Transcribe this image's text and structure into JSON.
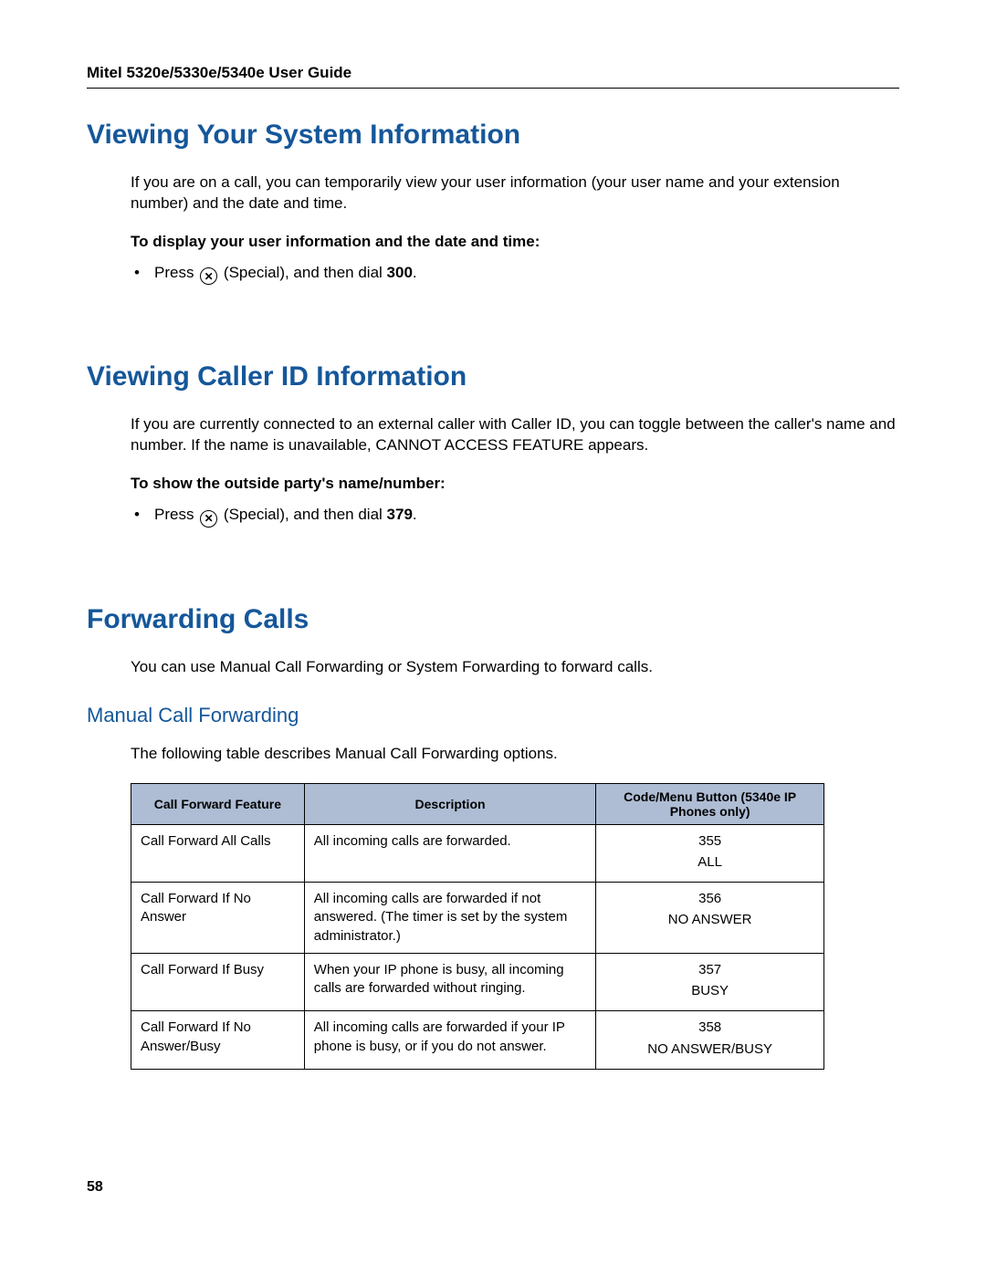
{
  "header": {
    "title": "Mitel 5320e/5330e/5340e User Guide"
  },
  "section1": {
    "heading": "Viewing Your System Information",
    "intro": "If you are on a call, you can temporarily view your user information (your user name and your extension number) and the date and time.",
    "subhead": "To display your user information and the date and time:",
    "bullet_prefix": "Press ",
    "bullet_mid": " (Special), and then dial ",
    "bullet_code": "300",
    "bullet_suffix": "."
  },
  "section2": {
    "heading": "Viewing Caller ID Information",
    "intro": "If you are currently connected to an external caller with Caller ID, you can toggle between the caller's name and number. If the name is unavailable, CANNOT ACCESS FEATURE appears.",
    "subhead": "To show the outside party's name/number:",
    "bullet_prefix": "Press ",
    "bullet_mid": " (Special), and then dial ",
    "bullet_code": "379",
    "bullet_suffix": "."
  },
  "section3": {
    "heading": "Forwarding Calls",
    "intro": "You can use Manual Call Forwarding or System Forwarding to forward calls.",
    "subheading": "Manual Call Forwarding",
    "subintro": "The following table describes Manual Call Forwarding options."
  },
  "table": {
    "columns": [
      "Call Forward Feature",
      "Description",
      "Code/Menu Button (5340e IP Phones only)"
    ],
    "col_widths": [
      "190px",
      "320px",
      "250px"
    ],
    "header_bg": "#aebdd4",
    "rows": [
      {
        "feature": "Call Forward All Calls",
        "desc": "All incoming calls are forwarded.",
        "code": "355",
        "button": "ALL"
      },
      {
        "feature": "Call Forward If No Answer",
        "desc": "All incoming calls are forwarded if not answered. (The timer is set by the system administrator.)",
        "code": "356",
        "button": "NO ANSWER"
      },
      {
        "feature": "Call Forward If Busy",
        "desc": "When your IP phone is busy, all incoming calls are forwarded without ringing.",
        "code": "357",
        "button": "BUSY"
      },
      {
        "feature": "Call Forward If No Answer/Busy",
        "desc": "All incoming calls are forwarded if your IP phone is busy, or if you do not answer.",
        "code": "358",
        "button": "NO ANSWER/BUSY"
      }
    ]
  },
  "footer": {
    "page": "58"
  },
  "icon_glyph": "✕"
}
